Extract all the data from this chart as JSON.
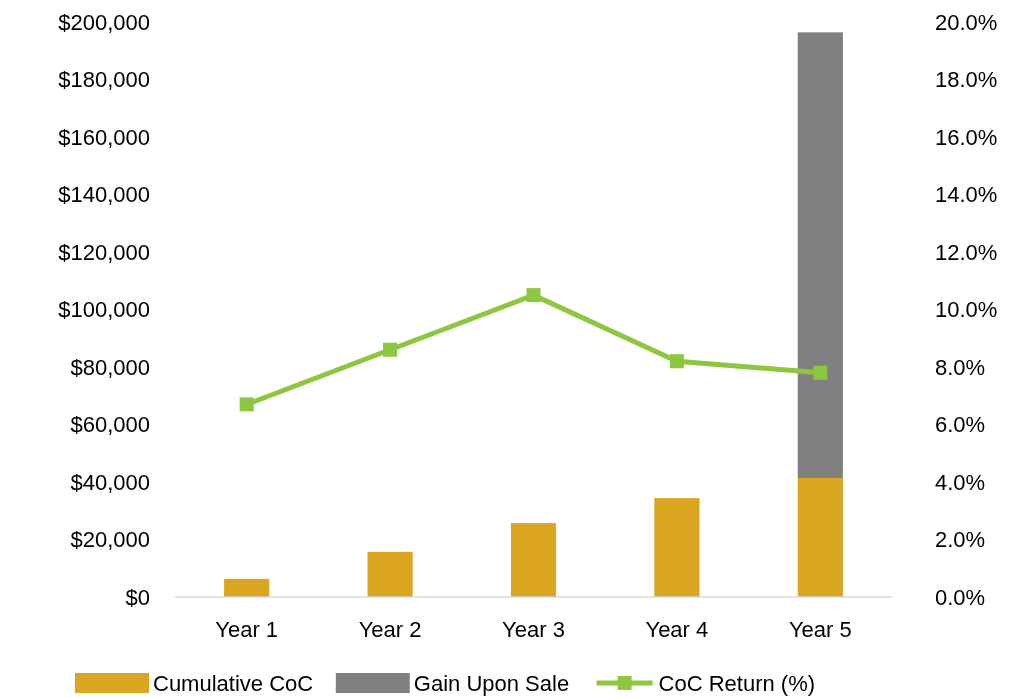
{
  "chart_data": {
    "type": "bar",
    "stacked": true,
    "categories": [
      "Year 1",
      "Year 2",
      "Year 3",
      "Year 4",
      "Year 5"
    ],
    "series": [
      {
        "name": "Cumulative CoC",
        "color": "#daa520",
        "values": [
          6300,
          15700,
          25700,
          34400,
          41400
        ]
      },
      {
        "name": "Gain Upon Sale",
        "color": "#808080",
        "values": [
          null,
          null,
          null,
          null,
          155000
        ]
      },
      {
        "name": "CoC Return (%)",
        "type": "line",
        "axis": "y2",
        "color": "#8dc63f",
        "marker": "square",
        "values": [
          6.7,
          8.6,
          10.5,
          8.2,
          7.8
        ]
      }
    ],
    "ylim": [
      0,
      200000
    ],
    "yticks": [
      {
        "value": 0,
        "label": "$0"
      },
      {
        "value": 20000,
        "label": "$20,000"
      },
      {
        "value": 40000,
        "label": "$40,000"
      },
      {
        "value": 60000,
        "label": "$60,000"
      },
      {
        "value": 80000,
        "label": "$80,000"
      },
      {
        "value": 100000,
        "label": "$100,000"
      },
      {
        "value": 120000,
        "label": "$120,000"
      },
      {
        "value": 140000,
        "label": "$140,000"
      },
      {
        "value": 160000,
        "label": "$160,000"
      },
      {
        "value": 180000,
        "label": "$180,000"
      },
      {
        "value": 200000,
        "label": "$200,000"
      }
    ],
    "y2lim": [
      0,
      20
    ],
    "y2ticks": [
      {
        "value": 0,
        "label": "0.0%"
      },
      {
        "value": 2,
        "label": "2.0%"
      },
      {
        "value": 4,
        "label": "4.0%"
      },
      {
        "value": 6,
        "label": "6.0%"
      },
      {
        "value": 8,
        "label": "8.0%"
      },
      {
        "value": 10,
        "label": "10.0%"
      },
      {
        "value": 12,
        "label": "12.0%"
      },
      {
        "value": 14,
        "label": "14.0%"
      },
      {
        "value": 16,
        "label": "16.0%"
      },
      {
        "value": 18,
        "label": "18.0%"
      },
      {
        "value": 20,
        "label": "20.0%"
      }
    ],
    "grid": false,
    "legend": "bottom"
  }
}
